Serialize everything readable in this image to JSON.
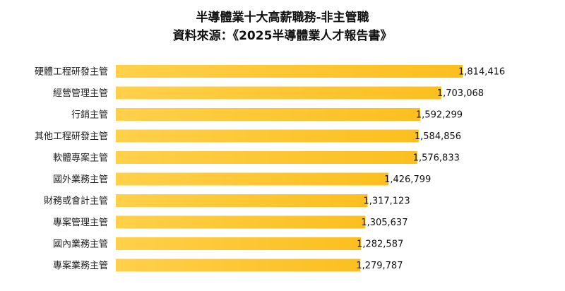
{
  "title_line1": "半導體業十大高薪職務-非主管職",
  "title_line2": "資料來源：《2025半導體業人才報告書》",
  "colors": {
    "bar_start": "#ffd04a",
    "bar_end": "#fbbf1f",
    "text": "#111111"
  },
  "chart_data": {
    "type": "bar",
    "orientation": "horizontal",
    "title": "半導體業十大高薪職務-非主管職",
    "subtitle": "資料來源：《2025半導體業人才報告書》",
    "categories": [
      "硬體工程研發主管",
      "經營管理主管",
      "行銷主管",
      "其他工程研發主管",
      "軟體專案主管",
      "國外業務主管",
      "財務或會計主管",
      "專案管理主管",
      "國內業務主管",
      "專案業務主管"
    ],
    "value_labels": [
      "1,814,416",
      "1,703,068",
      "1,592,299",
      "1,584,856",
      "1,576,833",
      "1,426,799",
      "1,317,123",
      "1,305,637",
      "1,282,587",
      "1,279,787"
    ],
    "values": [
      1814416,
      1703068,
      1592299,
      1584856,
      1576833,
      1426799,
      1317123,
      1305637,
      1282587,
      1279787
    ],
    "xlim": [
      0,
      1814416
    ],
    "grid": false,
    "legend": "none"
  }
}
